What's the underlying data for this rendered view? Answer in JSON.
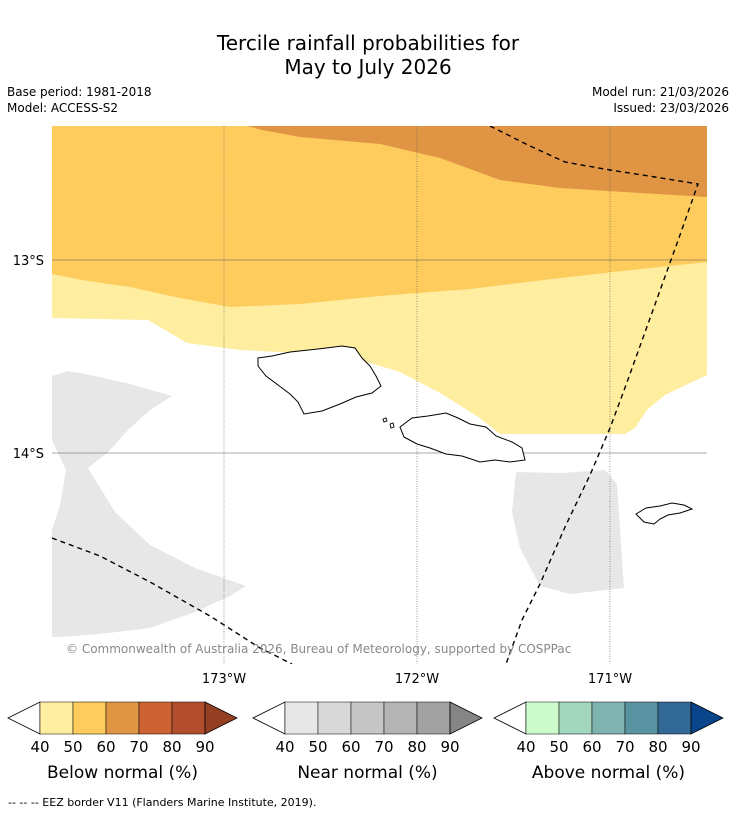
{
  "title_line1": "Tercile rainfall probabilities for",
  "title_line2": "May to July 2026",
  "base_period": "Base period: 1981-2018",
  "model": "Model: ACCESS-S2",
  "model_run": "Model run: 21/03/2026",
  "issued": "Issued: 23/03/2026",
  "map": {
    "lat_labels": [
      "13°S",
      "14°S"
    ],
    "lon_labels": [
      "173°W",
      "172°W",
      "171°W"
    ],
    "copyright": "© Commonwealth of Australia 2026, Bureau of Meteorology, supported by COSPPac"
  },
  "legends": [
    {
      "title": "Below normal (%)",
      "ticks": [
        "40",
        "50",
        "60",
        "70",
        "80",
        "90"
      ],
      "colors": [
        "#ffeda0",
        "#fecc5c",
        "#e09545",
        "#cd6333",
        "#b24e2d",
        "#943e24"
      ]
    },
    {
      "title": "Near normal (%)",
      "ticks": [
        "40",
        "50",
        "60",
        "70",
        "80",
        "90"
      ],
      "colors": [
        "#e7e7e7",
        "#d8d8d8",
        "#c6c6c6",
        "#b4b4b4",
        "#a1a1a1",
        "#858585"
      ]
    },
    {
      "title": "Above normal (%)",
      "ticks": [
        "40",
        "50",
        "60",
        "70",
        "80",
        "90"
      ],
      "colors": [
        "#ccfccc",
        "#a2d6bd",
        "#80b4b0",
        "#5993a1",
        "#336996",
        "#08458a"
      ]
    }
  ],
  "footer": "--  --  -- EEZ border V11 (Flanders Marine Institute, 2019)."
}
